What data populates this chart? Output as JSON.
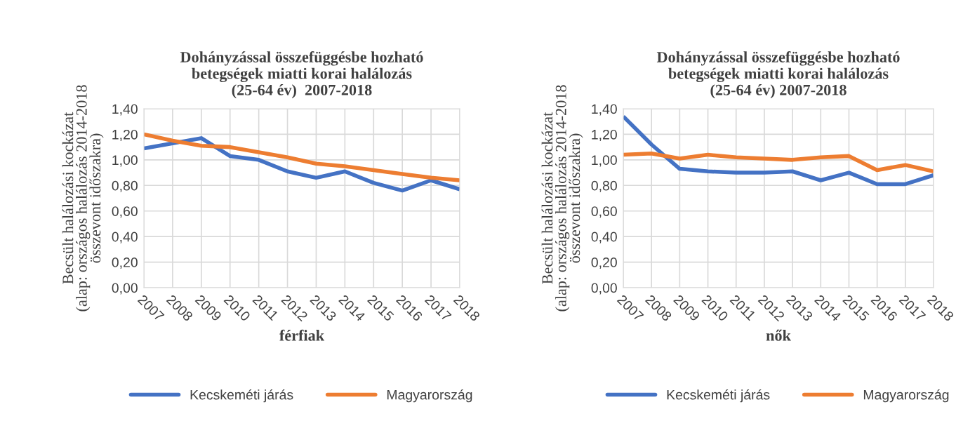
{
  "chart_data": [
    {
      "type": "line",
      "title": "Dohányzással összefüggésbe hozható\nbetegségek miatti korai halálozás\n(25-64 év)  2007-2018",
      "xlabel": "férfiak",
      "ylabel": "Becsült halálozási kockázat\n(alap: országos halálozás 2014-2018\nösszevont időszakra)",
      "categories": [
        "2007",
        "2008",
        "2009",
        "2010",
        "2011",
        "2012",
        "2013",
        "2014",
        "2015",
        "2016",
        "2017",
        "2018"
      ],
      "series": [
        {
          "name": "Kecskeméti járás",
          "color": "#4472c4",
          "values": [
            1.09,
            1.13,
            1.17,
            1.03,
            1.0,
            0.91,
            0.86,
            0.91,
            0.82,
            0.76,
            0.84,
            0.77
          ]
        },
        {
          "name": "Magyarország",
          "color": "#ed7d31",
          "values": [
            1.2,
            1.15,
            1.11,
            1.1,
            1.06,
            1.02,
            0.97,
            0.95,
            0.92,
            0.89,
            0.86,
            0.84
          ]
        }
      ],
      "ylim": [
        0,
        1.4
      ],
      "yticks": [
        {
          "value": 0,
          "label": "0,00"
        },
        {
          "value": 0.2,
          "label": "0,20"
        },
        {
          "value": 0.4,
          "label": "0,40"
        },
        {
          "value": 0.6,
          "label": "0,60"
        },
        {
          "value": 0.8,
          "label": "0,80"
        },
        {
          "value": 1.0,
          "label": "1,00"
        },
        {
          "value": 1.2,
          "label": "1,20"
        },
        {
          "value": 1.4,
          "label": "1,40"
        }
      ],
      "grid": true,
      "legend": "bottom",
      "marker": "none",
      "line_style": "solid"
    },
    {
      "type": "line",
      "title": "Dohányzással összefüggésbe hozható\nbetegségek miatti korai halálozás\n(25-64 év) 2007-2018",
      "xlabel": "nők",
      "ylabel": "Becsült halálozási kockázat\n(alap: országos halálozás 2014-2018\nösszevont időszakra)",
      "categories": [
        "2007",
        "2008",
        "2009",
        "2010",
        "2011",
        "2012",
        "2013",
        "2014",
        "2015",
        "2016",
        "2017",
        "2018"
      ],
      "series": [
        {
          "name": "Kecskeméti járás",
          "color": "#4472c4",
          "values": [
            1.34,
            1.12,
            0.93,
            0.91,
            0.9,
            0.9,
            0.91,
            0.84,
            0.9,
            0.81,
            0.81,
            0.88
          ]
        },
        {
          "name": "Magyarország",
          "color": "#ed7d31",
          "values": [
            1.04,
            1.05,
            1.01,
            1.04,
            1.02,
            1.01,
            1.0,
            1.02,
            1.03,
            0.92,
            0.96,
            0.91
          ]
        }
      ],
      "ylim": [
        0,
        1.4
      ],
      "yticks": [
        {
          "value": 0,
          "label": "0,00"
        },
        {
          "value": 0.2,
          "label": "0,20"
        },
        {
          "value": 0.4,
          "label": "0,40"
        },
        {
          "value": 0.6,
          "label": "0,60"
        },
        {
          "value": 0.8,
          "label": "0,80"
        },
        {
          "value": 1.0,
          "label": "1,00"
        },
        {
          "value": 1.2,
          "label": "1,20"
        },
        {
          "value": 1.4,
          "label": "1,40"
        }
      ],
      "grid": true,
      "legend": "bottom",
      "marker": "none",
      "line_style": "solid"
    }
  ]
}
